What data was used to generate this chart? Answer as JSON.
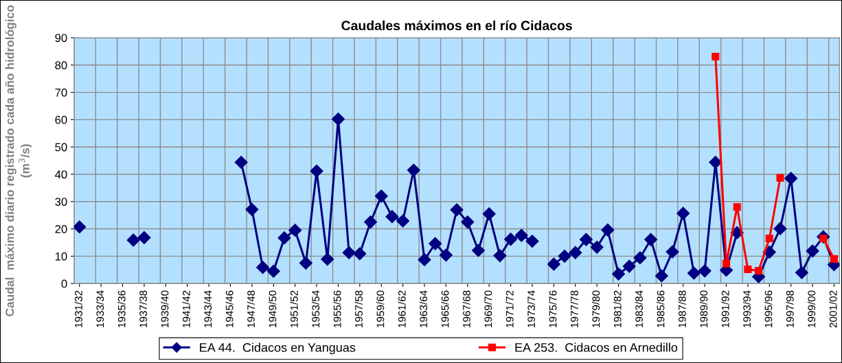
{
  "chart_data": {
    "type": "line",
    "title": "Caudales máximos en el río Cidacos",
    "ylabel": "Caudal  máximo diario registrado cada año hidrológico (m$^{3}$/s)",
    "categories": [
      "1931/32",
      null,
      "1933/34",
      null,
      "1935/36",
      null,
      "1937/38",
      null,
      "1939/40",
      null,
      "1941/42",
      null,
      "1943/44",
      null,
      "1945/46",
      null,
      "1947/48",
      null,
      "1949/50",
      null,
      "1951/52",
      null,
      "1953/54",
      null,
      "1955/56",
      null,
      "1957/58",
      null,
      "1959/60",
      null,
      "1961/62",
      null,
      "1963/64",
      null,
      "1965/66",
      null,
      "1967/68",
      null,
      "1969/70",
      null,
      "1971/72",
      null,
      "1973/74",
      null,
      "1975/76",
      null,
      "1977/78",
      null,
      "1979/80",
      null,
      "1981/82",
      null,
      "1983/84",
      null,
      "1985/86",
      null,
      "1987/88",
      null,
      "1989/90",
      null,
      "1991/92",
      null,
      "1993/94",
      null,
      "1995/96",
      null,
      "1997/98",
      null,
      "1999/00",
      null,
      "2001/02"
    ],
    "series": [
      {
        "name": "EA 44.  Cidacos en Yanguas",
        "color": "#000080",
        "marker": "diamond",
        "values": [
          20.7,
          null,
          null,
          null,
          null,
          15.9,
          16.8,
          null,
          null,
          null,
          null,
          null,
          null,
          null,
          null,
          44.4,
          27.1,
          5.9,
          4.5,
          16.7,
          19.5,
          7.5,
          41.2,
          8.9,
          60.2,
          11.3,
          10.9,
          22.5,
          32.0,
          24.5,
          22.9,
          41.5,
          8.7,
          14.6,
          10.4,
          27.0,
          22.5,
          12.1,
          25.5,
          10.2,
          16.2,
          17.6,
          15.5,
          null,
          7.1,
          10.0,
          11.3,
          16.1,
          13.3,
          19.6,
          3.5,
          6.3,
          9.4,
          16.1,
          2.8,
          11.6,
          25.7,
          3.8,
          4.6,
          44.4,
          4.9,
          18.6,
          null,
          2.5,
          11.5,
          20.1,
          38.5,
          4.0,
          11.9,
          17.1,
          6.9
        ]
      },
      {
        "name": "EA 253.  Cidacos en Arnedillo",
        "color": "#ff0000",
        "marker": "square",
        "values": [
          null,
          null,
          null,
          null,
          null,
          null,
          null,
          null,
          null,
          null,
          null,
          null,
          null,
          null,
          null,
          null,
          null,
          null,
          null,
          null,
          null,
          null,
          null,
          null,
          null,
          null,
          null,
          null,
          null,
          null,
          null,
          null,
          null,
          null,
          null,
          null,
          null,
          null,
          null,
          null,
          null,
          null,
          null,
          null,
          null,
          null,
          null,
          null,
          null,
          null,
          null,
          null,
          null,
          null,
          null,
          null,
          null,
          null,
          null,
          83.1,
          7.3,
          28.0,
          5.2,
          4.7,
          16.5,
          38.7,
          null,
          null,
          null,
          16.5,
          9.0
        ]
      }
    ],
    "ylim": [
      0,
      90
    ],
    "yticks": [
      0,
      10,
      20,
      30,
      40,
      50,
      60,
      70,
      80,
      90
    ],
    "grid": true,
    "legend": "bottom",
    "line_style": "solid"
  }
}
